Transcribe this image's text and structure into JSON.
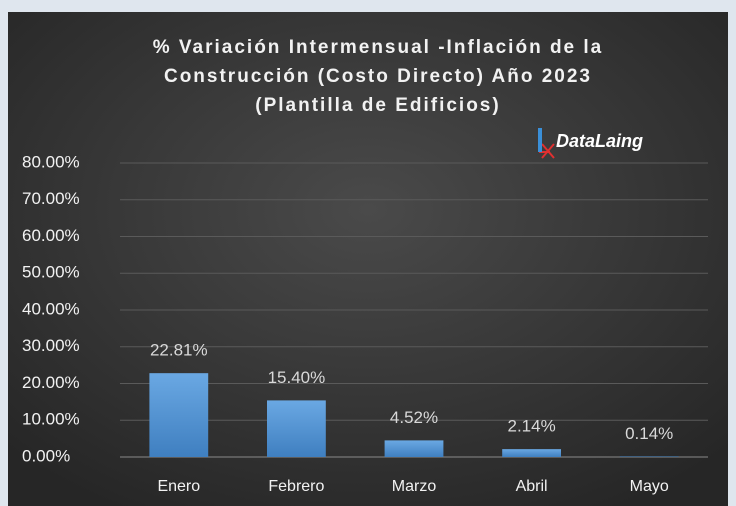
{
  "chart_data": {
    "type": "bar",
    "title": [
      "% Variación Intermensual -Inflación de la",
      "Construcción (Costo Directo) Año 2023",
      "(Plantilla de Edificios)"
    ],
    "logo": "DataLaing",
    "categories": [
      "Enero",
      "Febrero",
      "Marzo",
      "Abril",
      "Mayo"
    ],
    "values": [
      22.81,
      15.4,
      4.52,
      2.14,
      0.14
    ],
    "value_labels": [
      "22.81%",
      "15.40%",
      "4.52%",
      "2.14%",
      "0.14%"
    ],
    "color": "#5b9bd5",
    "ylim": [
      0,
      80
    ],
    "yticks": [
      {
        "value": 0,
        "label": "0.00%"
      },
      {
        "value": 10,
        "label": "10.00%"
      },
      {
        "value": 20,
        "label": "20.00%"
      },
      {
        "value": 30,
        "label": "30.00%"
      },
      {
        "value": 40,
        "label": "40.00%"
      },
      {
        "value": 50,
        "label": "50.00%"
      },
      {
        "value": 60,
        "label": "60.00%"
      },
      {
        "value": 70,
        "label": "70.00%"
      },
      {
        "value": 80,
        "label": "80.00%"
      }
    ],
    "grid": true
  }
}
